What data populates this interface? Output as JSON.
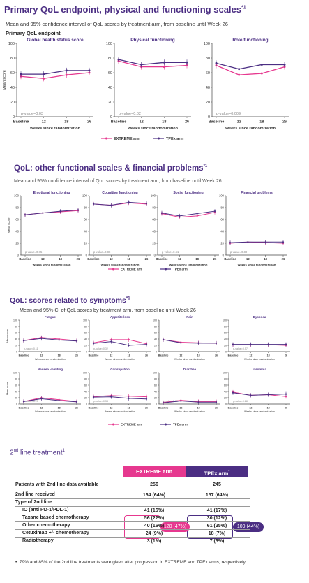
{
  "colors": {
    "extreme": "#e6388f",
    "tpex": "#4b2e83",
    "title": "#4b2e83"
  },
  "section1": {
    "title": "Primary QoL endpoint, physical and functioning scales",
    "title_sup": "*1",
    "subtitle": "Mean and 95% confidence interval of QoL scores by treatment arm, from baseline until Week 26",
    "subheading": "Primary QoL endpoint"
  },
  "section2": {
    "title": "QoL: other functional scales & financial problems",
    "title_sup": "*1",
    "subtitle": "Mean and 95% confidence interval of QoL scores by treatment arm, from baseline until Week 26"
  },
  "section3": {
    "title": "QoL: scores related to symptoms",
    "title_sup": "*1",
    "subtitle": "Mean and 95% CI of QoL scores by treatment arm, from baseline until Week 26"
  },
  "legend": {
    "extreme": "EXTREME arm",
    "tpex": "TPEx arm"
  },
  "axis": {
    "ylabel": "Mean score",
    "xlabel": "Weeks since randomization"
  },
  "chart_data": [
    {
      "type": "line",
      "group": 1,
      "title": "Global health status score",
      "categories": [
        "Baseline",
        "12",
        "18",
        "26"
      ],
      "ylim": [
        0,
        100
      ],
      "yticks": [
        0,
        20,
        40,
        60,
        80,
        100
      ],
      "pvalue": "p-value=0.03",
      "series": [
        {
          "name": "EXTREME arm",
          "values": [
            55,
            52,
            57,
            60
          ]
        },
        {
          "name": "TPEx arm",
          "values": [
            58,
            58,
            63,
            63
          ]
        }
      ]
    },
    {
      "type": "line",
      "group": 1,
      "title": "Physical functioning",
      "categories": [
        "Baseline",
        "12",
        "18",
        "26"
      ],
      "ylim": [
        0,
        100
      ],
      "yticks": [
        0,
        20,
        40,
        60,
        80,
        100
      ],
      "pvalue": "p-value=0.02",
      "series": [
        {
          "name": "EXTREME arm",
          "values": [
            76,
            68,
            68,
            70
          ]
        },
        {
          "name": "TPEx arm",
          "values": [
            78,
            71,
            74,
            74
          ]
        }
      ]
    },
    {
      "type": "line",
      "group": 1,
      "title": "Role functioning",
      "categories": [
        "Baseline",
        "12",
        "18",
        "26"
      ],
      "ylim": [
        0,
        100
      ],
      "yticks": [
        0,
        20,
        40,
        60,
        80,
        100
      ],
      "pvalue": "p-value=0.009",
      "series": [
        {
          "name": "EXTREME arm",
          "values": [
            70,
            57,
            59,
            68
          ]
        },
        {
          "name": "TPEx arm",
          "values": [
            73,
            65,
            71,
            71
          ]
        }
      ]
    },
    {
      "type": "line",
      "group": 2,
      "title": "Emotional functioning",
      "categories": [
        "Baseline",
        "12",
        "18",
        "26"
      ],
      "ylim": [
        0,
        100
      ],
      "yticks": [
        0,
        20,
        40,
        60,
        80,
        100
      ],
      "pvalue": "p-value=0.75",
      "series": [
        {
          "name": "EXTREME arm",
          "values": [
            68,
            71,
            73,
            75
          ]
        },
        {
          "name": "TPEx arm",
          "values": [
            68,
            71,
            74,
            76
          ]
        }
      ]
    },
    {
      "type": "line",
      "group": 2,
      "title": "Cognitive functioning",
      "categories": [
        "Baseline",
        "12",
        "18",
        "26"
      ],
      "ylim": [
        0,
        100
      ],
      "yticks": [
        0,
        20,
        40,
        60,
        80,
        100
      ],
      "pvalue": "p-value=0.88",
      "series": [
        {
          "name": "EXTREME arm",
          "values": [
            86,
            84,
            88,
            86
          ]
        },
        {
          "name": "TPEx arm",
          "values": [
            86,
            84,
            89,
            87
          ]
        }
      ]
    },
    {
      "type": "line",
      "group": 2,
      "title": "Social functioning",
      "categories": [
        "Baseline",
        "12",
        "18",
        "26"
      ],
      "ylim": [
        0,
        100
      ],
      "yticks": [
        0,
        20,
        40,
        60,
        80,
        100
      ],
      "pvalue": "p-value=0.61",
      "series": [
        {
          "name": "EXTREME arm",
          "values": [
            70,
            64,
            66,
            72
          ]
        },
        {
          "name": "TPEx arm",
          "values": [
            71,
            66,
            70,
            74
          ]
        }
      ]
    },
    {
      "type": "line",
      "group": 2,
      "title": "Financial problems",
      "categories": [
        "Baseline",
        "12",
        "18",
        "26"
      ],
      "ylim": [
        0,
        100
      ],
      "yticks": [
        0,
        20,
        40,
        60,
        80,
        100
      ],
      "pvalue": "p-value=0.89",
      "series": [
        {
          "name": "EXTREME arm",
          "values": [
            20,
            22,
            21,
            20
          ]
        },
        {
          "name": "TPEx arm",
          "values": [
            21,
            22,
            22,
            22
          ]
        }
      ]
    },
    {
      "type": "line",
      "group": 3,
      "title": "Fatigue",
      "categories": [
        "Baseline",
        "12",
        "18",
        "26"
      ],
      "ylim": [
        0,
        100
      ],
      "yticks": [
        0,
        20,
        40,
        60,
        80,
        100
      ],
      "pvalue": "p-value=0.11",
      "series": [
        {
          "name": "EXTREME arm",
          "values": [
            35,
            45,
            40,
            35
          ]
        },
        {
          "name": "TPEx arm",
          "values": [
            35,
            42,
            37,
            34
          ]
        }
      ]
    },
    {
      "type": "line",
      "group": 3,
      "title": "Appetite loss",
      "categories": [
        "Baseline",
        "12",
        "18",
        "26"
      ],
      "ylim": [
        0,
        100
      ],
      "yticks": [
        0,
        20,
        40,
        60,
        80,
        100
      ],
      "pvalue": "p-value=0.32",
      "series": [
        {
          "name": "EXTREME arm",
          "values": [
            28,
            38,
            38,
            25
          ]
        },
        {
          "name": "TPEx arm",
          "values": [
            26,
            32,
            20,
            23
          ]
        }
      ]
    },
    {
      "type": "line",
      "group": 3,
      "title": "Pain",
      "categories": [
        "Baseline",
        "12",
        "18",
        "26"
      ],
      "ylim": [
        0,
        100
      ],
      "yticks": [
        0,
        20,
        40,
        60,
        80,
        100
      ],
      "pvalue": "",
      "series": [
        {
          "name": "EXTREME arm",
          "values": [
            38,
            30,
            28,
            27
          ]
        },
        {
          "name": "TPEx arm",
          "values": [
            38,
            28,
            27,
            27
          ]
        }
      ]
    },
    {
      "type": "line",
      "group": 3,
      "title": "Dyspnea",
      "categories": [
        "Baseline",
        "12",
        "18",
        "26"
      ],
      "ylim": [
        0,
        100
      ],
      "yticks": [
        0,
        20,
        40,
        60,
        80,
        100
      ],
      "pvalue": "p-value=0.57",
      "series": [
        {
          "name": "EXTREME arm",
          "values": [
            22,
            22,
            22,
            20
          ]
        },
        {
          "name": "TPEx arm",
          "values": [
            23,
            23,
            23,
            23
          ]
        }
      ]
    },
    {
      "type": "line",
      "group": 3,
      "title": "Nausea vomiting",
      "categories": [
        "Baseline",
        "12",
        "18",
        "26"
      ],
      "ylim": [
        0,
        100
      ],
      "yticks": [
        0,
        20,
        40,
        60,
        80,
        100
      ],
      "pvalue": "p-value=0.25",
      "series": [
        {
          "name": "EXTREME arm",
          "values": [
            8,
            20,
            14,
            8
          ]
        },
        {
          "name": "TPEx arm",
          "values": [
            8,
            17,
            11,
            7
          ]
        }
      ]
    },
    {
      "type": "line",
      "group": 3,
      "title": "Constipation",
      "categories": [
        "Baseline",
        "12",
        "18",
        "26"
      ],
      "ylim": [
        0,
        100
      ],
      "yticks": [
        0,
        20,
        40,
        60,
        80,
        100
      ],
      "pvalue": "p-value=0.34",
      "series": [
        {
          "name": "EXTREME arm",
          "values": [
            24,
            27,
            25,
            23
          ]
        },
        {
          "name": "TPEx arm",
          "values": [
            22,
            23,
            18,
            16
          ]
        }
      ]
    },
    {
      "type": "line",
      "group": 3,
      "title": "Diarrhea",
      "categories": [
        "Baseline",
        "12",
        "18",
        "26"
      ],
      "ylim": [
        0,
        100
      ],
      "yticks": [
        0,
        20,
        40,
        60,
        80,
        100
      ],
      "pvalue": "p-value=0.22",
      "series": [
        {
          "name": "EXTREME arm",
          "values": [
            5,
            12,
            8,
            8
          ]
        },
        {
          "name": "TPEx arm",
          "values": [
            4,
            10,
            6,
            6
          ]
        }
      ]
    },
    {
      "type": "line",
      "group": 3,
      "title": "Insomnia",
      "categories": [
        "Baseline",
        "12",
        "18",
        "26"
      ],
      "ylim": [
        0,
        100
      ],
      "yticks": [
        0,
        20,
        40,
        60,
        80,
        100
      ],
      "pvalue": "p-value=0.28",
      "series": [
        {
          "name": "EXTREME arm",
          "values": [
            38,
            28,
            30,
            24
          ]
        },
        {
          "name": "TPEx arm",
          "values": [
            36,
            28,
            30,
            32
          ]
        }
      ]
    }
  ],
  "table": {
    "title": "2",
    "title_sup": "nd",
    "title_rest": " line treatment",
    "title_sup2": "1",
    "col_extreme": "EXTREME arm",
    "col_tpex": "TPEx arm",
    "col_tpex_sup": "*",
    "rows": [
      {
        "label": "Patients with 2nd line data available",
        "ext": "256",
        "tpe": "245",
        "bold": true,
        "indent": false
      },
      {
        "label": "2nd line received",
        "ext": "164 (64%)",
        "tpe": "157 (64%)",
        "bold": true,
        "indent": false
      },
      {
        "label": "Type of 2nd line",
        "ext": "",
        "tpe": "",
        "bold": true,
        "indent": false
      },
      {
        "label": "IO (anti PD-1/PDL-1)",
        "ext": "41 (16%)",
        "tpe": "41 (17%)",
        "bold": true,
        "indent": true
      },
      {
        "label": "Taxane based chemotherapy",
        "ext": "56 (22%)",
        "tpe": "30 (12%)",
        "bold": true,
        "indent": true
      },
      {
        "label": "Other chemotherapy",
        "ext": "40 (16%)",
        "tpe": "61 (25%)",
        "bold": true,
        "indent": true
      },
      {
        "label": "Cetuximab +/- chemotherapy",
        "ext": "24 (9%)",
        "tpe": "18 (7%)",
        "bold": true,
        "indent": true
      },
      {
        "label": "Radiotherapy",
        "ext": "3 (1%)",
        "tpe": "7 (3%)",
        "bold": true,
        "indent": true
      }
    ],
    "badge_extreme": "120 (47%)",
    "badge_tpex": "109 (44%)",
    "footnote": "79% and 85% of the 2nd line treatments were given after progression in EXTREME and TPEx arms, respectively."
  }
}
